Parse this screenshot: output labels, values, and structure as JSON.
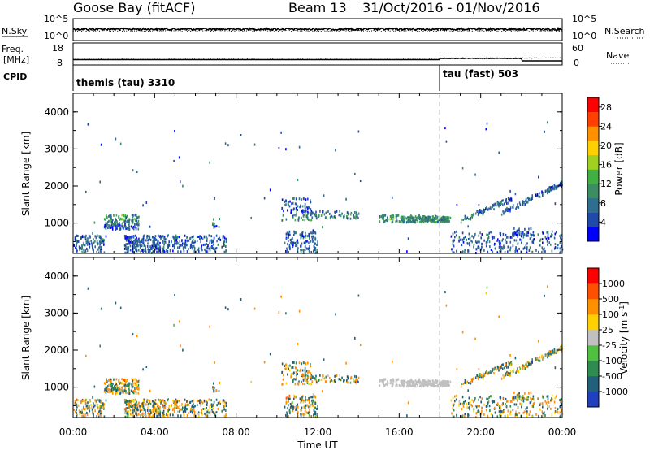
{
  "header": {
    "station": "Goose Bay (fitACF)",
    "beam": "Beam 13",
    "dates": "31/Oct/2016 - 01/Nov/2016"
  },
  "params": {
    "nsky_label": "N.Sky",
    "nsky_ticks": [
      "10^5",
      "10^0"
    ],
    "nsearch_label": "N.Search",
    "nsearch_ticks": [
      "10^5",
      "10^0"
    ],
    "freq_label": "Freq.",
    "freq_unit": "[MHz]",
    "freq_ticks": [
      "18",
      "8"
    ],
    "nave_label": "Nave",
    "nave_ticks": [
      "60",
      "0"
    ],
    "cpid_label": "CPID",
    "cpid_segments": [
      {
        "text": "themis (tau) 3310",
        "start_hour": 0
      },
      {
        "text": "tau (fast) 503",
        "start_hour": 18
      }
    ]
  },
  "chart_data": [
    {
      "type": "heatmap",
      "title": "Power",
      "ylabel": "Slant Range [km]",
      "xlabel": "Time UT",
      "ylim": [
        180,
        4500
      ],
      "yticks": [
        "4000",
        "3000",
        "2000",
        "1000"
      ],
      "xticks": [
        "00:00",
        "04:00",
        "08:00",
        "12:00",
        "16:00",
        "20:00",
        "00:00"
      ],
      "xlim_hours": [
        0,
        24
      ],
      "marker_hour": 18,
      "colorbar": {
        "label": "Power [dB]",
        "range": [
          0,
          30
        ],
        "ticks": [
          "28",
          "24",
          "20",
          "16",
          "12",
          "8",
          "4"
        ],
        "colors": [
          "#0000ff",
          "#1f4aa8",
          "#2e6e8e",
          "#3c8c64",
          "#40b040",
          "#a0d020",
          "#ffd000",
          "#ff9000",
          "#ff4000",
          "#ff0000"
        ]
      }
    },
    {
      "type": "heatmap",
      "title": "Velocity",
      "ylabel": "Slant Range [km]",
      "xlabel": "Time UT",
      "ylim": [
        180,
        4500
      ],
      "yticks": [
        "4000",
        "3000",
        "2000",
        "1000"
      ],
      "xticks": [
        "00:00",
        "04:00",
        "08:00",
        "12:00",
        "16:00",
        "20:00",
        "00:00"
      ],
      "xlim_hours": [
        0,
        24
      ],
      "marker_hour": 18,
      "colorbar": {
        "label": "Velocity [m s^-1]",
        "range": [
          -1000,
          1000
        ],
        "ticks": [
          "1000",
          "500",
          "100",
          "25",
          "-25",
          "-100",
          "-500",
          "-1000"
        ],
        "colors": [
          "#2040c0",
          "#20607a",
          "#2e8c50",
          "#50c040",
          "#c0c0c0",
          "#ffd000",
          "#ff9000",
          "#ff5000",
          "#ff0000"
        ]
      }
    }
  ]
}
